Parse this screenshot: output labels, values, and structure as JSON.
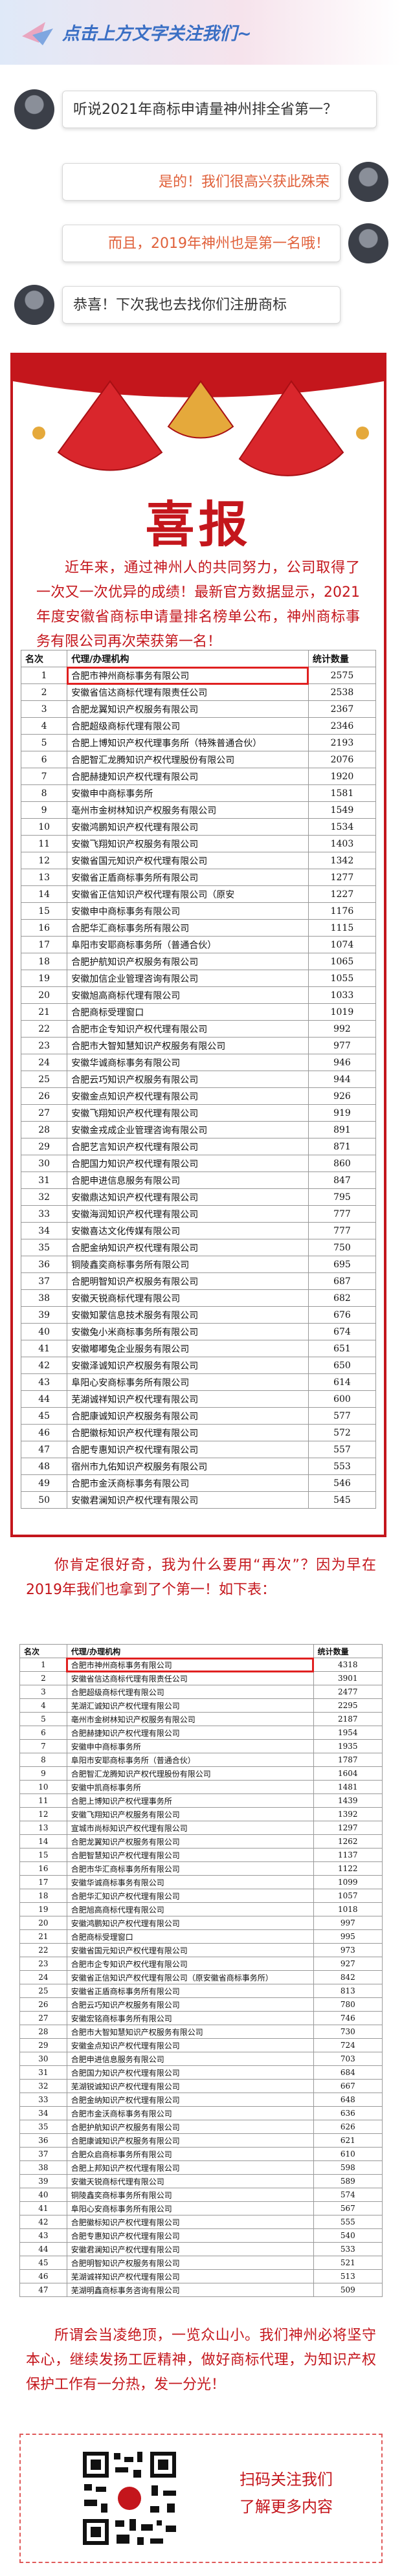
{
  "header": {
    "text": "点击上方文字关注我们~"
  },
  "chat": [
    "听说2021年商标申请量神州排全省第一？",
    "是的！我们很高兴获此殊荣",
    "而且，2019年神州也是第一名哦！",
    "恭喜！下次我也去找你们注册商标"
  ],
  "poster": {
    "title": "喜报",
    "text": "近年来，通过神州人的共同努力，公司取得了一次又一次优异的成绩！最新官方数据显示，2021年度安徽省商标申请量排名榜单公布，神州商标事务有限公司再次荣获第一名！"
  },
  "table1": {
    "headers": [
      "名次",
      "代理/办理机构",
      "统计数量"
    ],
    "rows": [
      [
        1,
        "合肥市神州商标事务有限公司",
        2575
      ],
      [
        2,
        "安徽省信达商标代理有限责任公司",
        2538
      ],
      [
        3,
        "合肥龙翼知识产权服务有限公司",
        2367
      ],
      [
        4,
        "合肥超级商标代理有限公司",
        2346
      ],
      [
        5,
        "合肥上博知识产权代理事务所（特殊普通合伙）",
        2193
      ],
      [
        6,
        "合肥智汇龙腾知识产权代理股份有限公司",
        2076
      ],
      [
        7,
        "合肥赫捷知识产权代理有限公司",
        1920
      ],
      [
        8,
        "安徽申中商标事务所",
        1581
      ],
      [
        9,
        "亳州市金树林知识产权服务有限公司",
        1549
      ],
      [
        10,
        "安徽鸿鹏知识产权代理有限公司",
        1534
      ],
      [
        11,
        "安徽飞翔知识产权服务有限公司",
        1403
      ],
      [
        12,
        "安徽省国元知识产权代理有限公司",
        1342
      ],
      [
        13,
        "安徽省正盾商标事务所有限公司",
        1277
      ],
      [
        14,
        "安徽省正信知识产权代理有限公司（原安",
        1227
      ],
      [
        15,
        "安徽申中商标事务有限公司",
        1176
      ],
      [
        16,
        "合肥华汇商标事务所有限公司",
        1115
      ],
      [
        17,
        "阜阳市安耶商标事务所（普通合伙）",
        1074
      ],
      [
        18,
        "合肥护航知识产权服务有限公司",
        1065
      ],
      [
        19,
        "安徽加信企业管理咨询有限公司",
        1055
      ],
      [
        20,
        "安徽旭高商标代理有限公司",
        1033
      ],
      [
        21,
        "合肥商标受理窗口",
        1019
      ],
      [
        22,
        "合肥市企专知识产权代理有限公司",
        992
      ],
      [
        23,
        "合肥市大智知慧知识产权服务有限公司",
        977
      ],
      [
        24,
        "安徽华诚商标事务有限公司",
        946
      ],
      [
        25,
        "合肥云巧知识产权服务有限公司",
        944
      ],
      [
        26,
        "安徽金点知识产权代理有限公司",
        926
      ],
      [
        27,
        "安徽飞翔知识产权代理有限公司",
        919
      ],
      [
        28,
        "安徽金戎成企业管理咨询有限公司",
        891
      ],
      [
        29,
        "合肥艺言知识产权代理有限公司",
        871
      ],
      [
        30,
        "合肥国力知识产权代理有限公司",
        860
      ],
      [
        31,
        "合肥申进信息服务有限公司",
        847
      ],
      [
        32,
        "安徽鼎达知识产权代理有限公司",
        795
      ],
      [
        33,
        "安徽海润知识产权代理有限公司",
        777
      ],
      [
        34,
        "安徽喜达文化传媒有限公司",
        777
      ],
      [
        35,
        "合肥金纳知识产权代理有限公司",
        750
      ],
      [
        36,
        "铜陵鑫奕商标事务所有限公司",
        695
      ],
      [
        37,
        "合肥明智知识产权服务有限公司",
        687
      ],
      [
        38,
        "安徽天锐商标代理有限公司",
        682
      ],
      [
        39,
        "安徽知蒙信息技术服务有限公司",
        676
      ],
      [
        40,
        "安徽兔小米商标事务所有限公司",
        674
      ],
      [
        41,
        "安徽嘟嘟兔企业服务有限公司",
        651
      ],
      [
        42,
        "安徽泽诚知识产权服务有限公司",
        650
      ],
      [
        43,
        "阜阳心安商标事务所有限公司",
        614
      ],
      [
        44,
        "芜湖诚祥知识产权代理有限公司",
        600
      ],
      [
        45,
        "合肥康诚知识产权服务有限公司",
        577
      ],
      [
        46,
        "合肥徽标知识产权代理有限公司",
        572
      ],
      [
        47,
        "合肥专惠知识产权代理有限公司",
        557
      ],
      [
        48,
        "宿州市九佑知识产权服务有限公司",
        553
      ],
      [
        49,
        "合肥市金沃商标事务有限公司",
        546
      ],
      [
        50,
        "安徽君澜知识产权代理有限公司",
        545
      ]
    ]
  },
  "intro2": "你肯定很好奇，我为什么要用“再次”？因为早在2019年我们也拿到了个第一！如下表：",
  "table2": {
    "headers": [
      "名次",
      "代理/办理机构",
      "统计数量"
    ],
    "rows": [
      [
        1,
        "合肥市神州商标事务有限公司",
        4318
      ],
      [
        2,
        "安徽省信达商标代理有限责任公司",
        3901
      ],
      [
        3,
        "合肥超级商标代理有限公司",
        2477
      ],
      [
        4,
        "芜湖汇诚知识产权代理有限公司",
        2295
      ],
      [
        5,
        "亳州市金树林知识产权服务有限公司",
        2187
      ],
      [
        6,
        "合肥赫捷知识产权代理有限公司",
        1954
      ],
      [
        7,
        "安徽申中商标事务所",
        1935
      ],
      [
        8,
        "阜阳市安耶商标事务所（普通合伙）",
        1787
      ],
      [
        9,
        "合肥智汇龙腾知识产权代理股份有限公司",
        1604
      ],
      [
        10,
        "安徽中凯商标事务所",
        1481
      ],
      [
        11,
        "合肥上博知识产权代理事务所",
        1439
      ],
      [
        12,
        "安徽飞翔知识产权服务有限公司",
        1392
      ],
      [
        13,
        "宣城市尚标知识产权代理有限公司",
        1297
      ],
      [
        14,
        "合肥龙翼知识产权服务有限公司",
        1262
      ],
      [
        15,
        "合肥智慧知识产权代理有限公司",
        1137
      ],
      [
        16,
        "合肥市华汇商标事务所有限公司",
        1122
      ],
      [
        17,
        "安徽华诚商标事务有限公司",
        1099
      ],
      [
        18,
        "合肥华汇知识产权代理有限公司",
        1057
      ],
      [
        19,
        "合肥旭高商标代理有限公司",
        1018
      ],
      [
        20,
        "安徽鸿鹏知识产权代理有限公司",
        997
      ],
      [
        21,
        "合肥商标受理窗口",
        995
      ],
      [
        22,
        "安徽省国元知识产权代理有限公司",
        973
      ],
      [
        23,
        "合肥市企专知识产权代理有限公司",
        927
      ],
      [
        24,
        "安徽省正信知识产权代理有限公司（原安徽省商标事务所）",
        842
      ],
      [
        25,
        "安徽省正盾商标事务所有限公司",
        813
      ],
      [
        26,
        "合肥云巧知识产权服务有限公司",
        780
      ],
      [
        27,
        "安徽宏铭商标事务所有限公司",
        746
      ],
      [
        28,
        "合肥市大智知慧知识产权服务有限公司",
        730
      ],
      [
        29,
        "安徽金点知识产权代理有限公司",
        724
      ],
      [
        30,
        "合肥申进信息服务有限公司",
        703
      ],
      [
        31,
        "合肥国力知识产权代理有限公司",
        684
      ],
      [
        32,
        "芜湖锐诚知识产权代理有限公司",
        667
      ],
      [
        33,
        "合肥金纳知识产权代理有限公司",
        648
      ],
      [
        34,
        "合肥市金沃商标事务有限公司",
        636
      ],
      [
        35,
        "合肥护航知识产权服务有限公司",
        626
      ],
      [
        36,
        "合肥康诚知识产权服务有限公司",
        621
      ],
      [
        37,
        "合肥众启商标事务所有限公司",
        610
      ],
      [
        38,
        "合肥上邦知识产权代理有限公司",
        598
      ],
      [
        39,
        "安徽天锐商标代理有限公司",
        589
      ],
      [
        40,
        "铜陵鑫奕商标事务所有限公司",
        574
      ],
      [
        41,
        "阜阳心安商标事务所有限公司",
        567
      ],
      [
        42,
        "合肥徽标知识产权代理有限公司",
        555
      ],
      [
        43,
        "合肥专惠知识产权代理有限公司",
        540
      ],
      [
        44,
        "安徽君澜知识产权代理有限公司",
        533
      ],
      [
        45,
        "合肥明智知识产权服务有限公司",
        521
      ],
      [
        46,
        "芜湖诚祥知识产权代理有限公司",
        513
      ],
      [
        47,
        "芜湖明鑫商标事务咨询有限公司",
        509
      ]
    ]
  },
  "closing": "所谓会当凌绝顶，一览众山小。我们神州必将坚守本心，继续发扬工匠精神，做好商标代理，为知识产权保护工作有一分热，发一分光！",
  "follow": [
    "扫码关注我们",
    "了解更多内容"
  ]
}
